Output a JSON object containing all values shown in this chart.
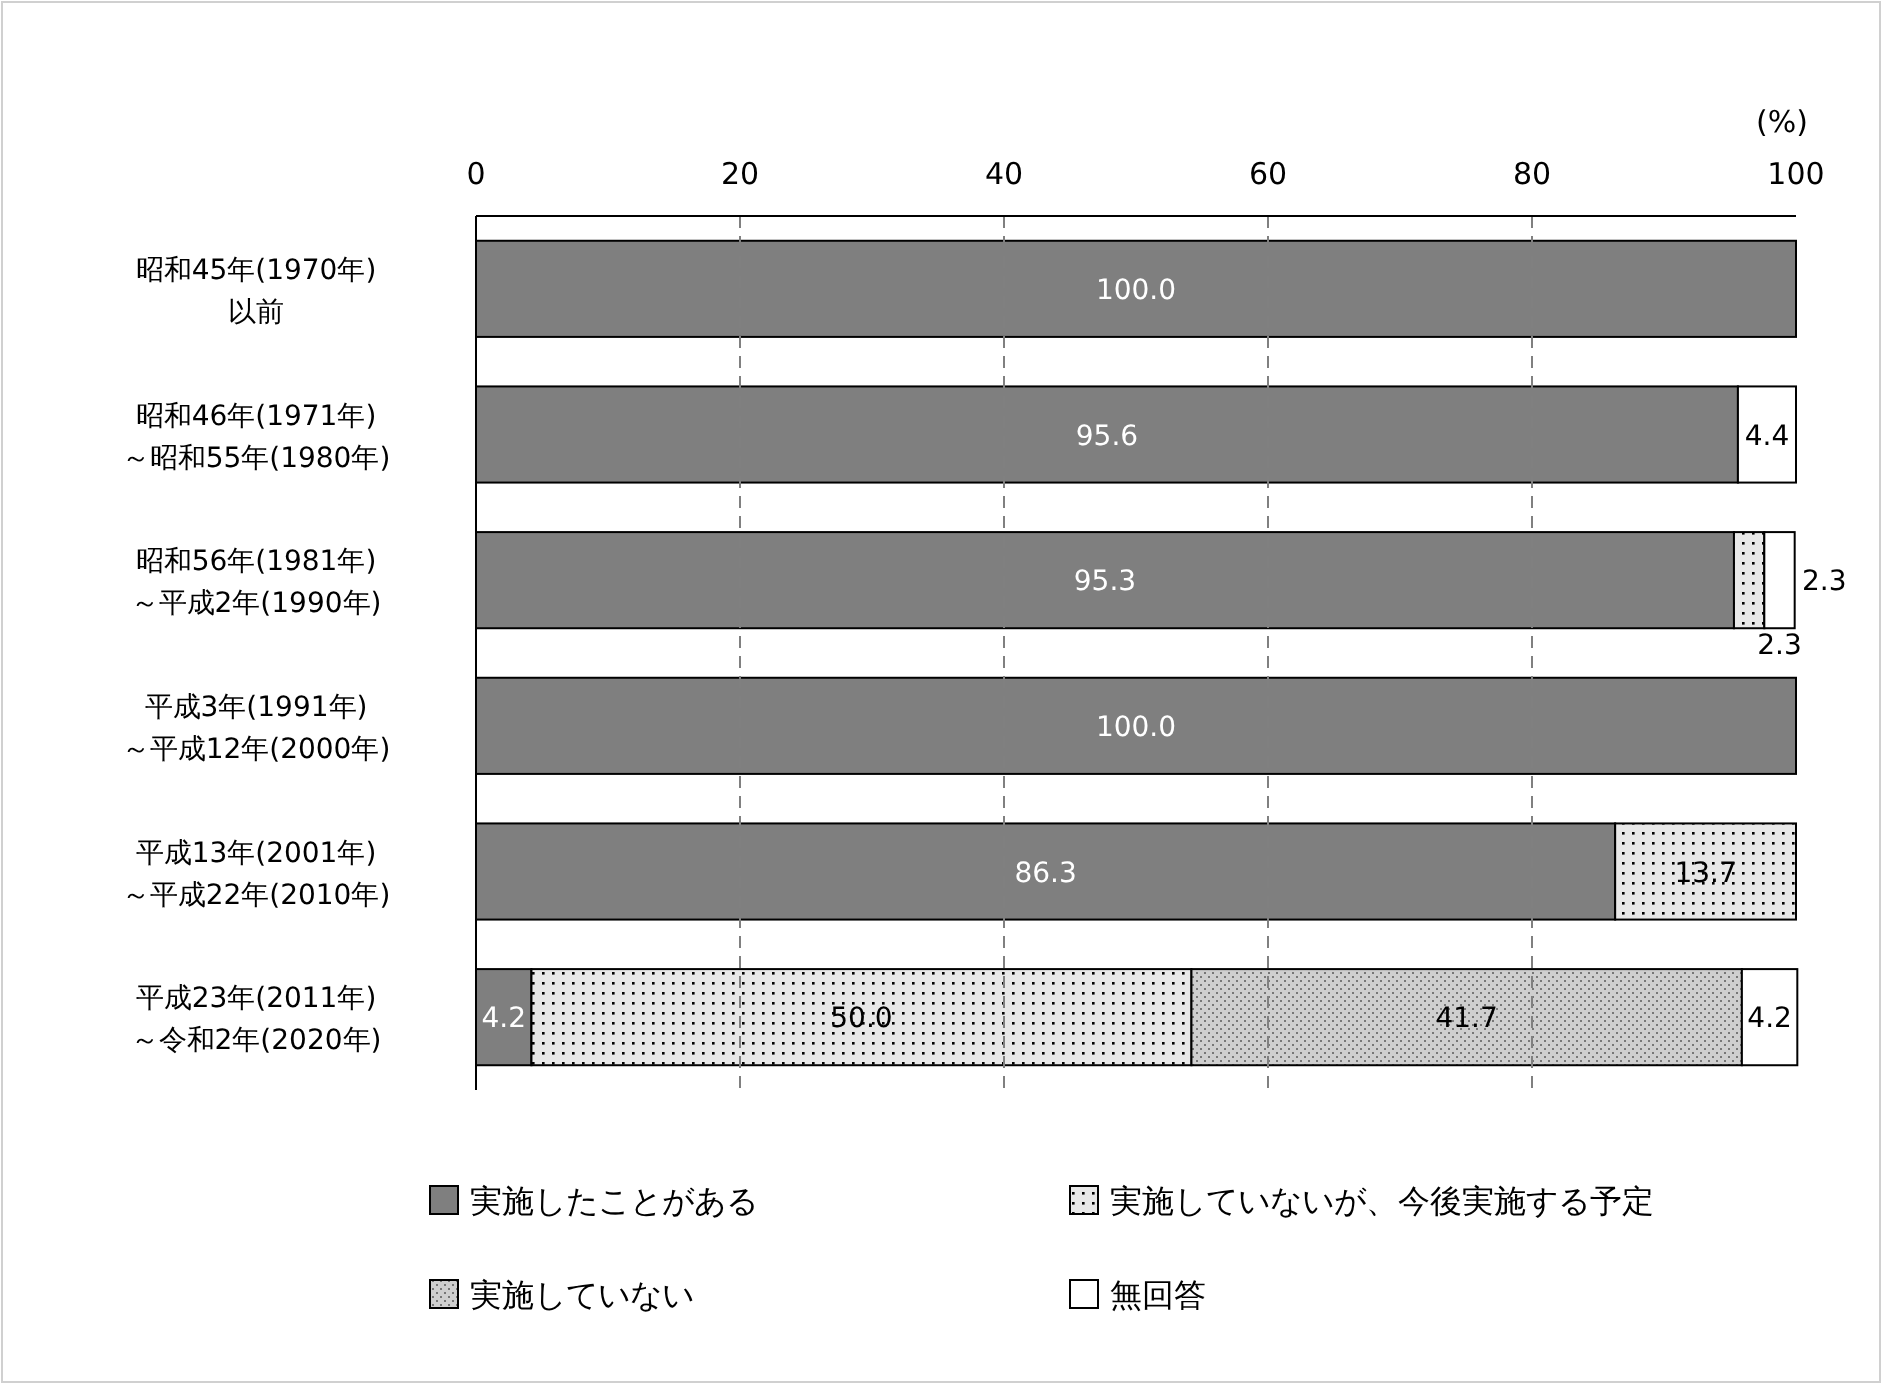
{
  "chart_data": {
    "type": "bar",
    "orientation": "horizontal",
    "stacked": true,
    "xlabel": "(%)",
    "categories": [
      "昭和45年(1970年)以前",
      "昭和46年(1971年)～昭和55年(1980年)",
      "昭和56年(1981年)～平成2年(1990年)",
      "平成3年(1991年)～平成12年(2000年)",
      "平成13年(2001年)～平成22年(2010年)",
      "平成23年(2011年)～令和2年(2020年)"
    ],
    "series": [
      {
        "name": "実施したことがある",
        "color": "#7f7f7f",
        "values": [
          100.0,
          95.6,
          95.3,
          100.0,
          86.3,
          4.2
        ],
        "value_labels": [
          "100.0",
          "95.6",
          "95.3",
          "100.0",
          "86.3",
          "4.2"
        ]
      },
      {
        "name": "実施していないが、今後実施する予定",
        "color": "#e8e8e8",
        "values": [
          0,
          0,
          2.3,
          0,
          13.7,
          50.0
        ],
        "value_labels": [
          null,
          null,
          "2.3",
          null,
          "13.7",
          "50.0"
        ]
      },
      {
        "name": "実施していない",
        "color": "#cfcfcf",
        "values": [
          0,
          0,
          0,
          0,
          0,
          41.7
        ],
        "value_labels": [
          null,
          null,
          null,
          null,
          null,
          "41.7"
        ]
      },
      {
        "name": "無回答",
        "color": "#ffffff",
        "values": [
          0,
          4.4,
          2.3,
          0,
          0,
          4.2
        ],
        "value_labels": [
          null,
          "4.4",
          "2.3",
          null,
          null,
          "4.2"
        ]
      }
    ],
    "xlim": [
      0,
      100
    ],
    "xticks": [
      0,
      20,
      40,
      60,
      80,
      100
    ],
    "grid": "x",
    "legend": "bottom"
  }
}
